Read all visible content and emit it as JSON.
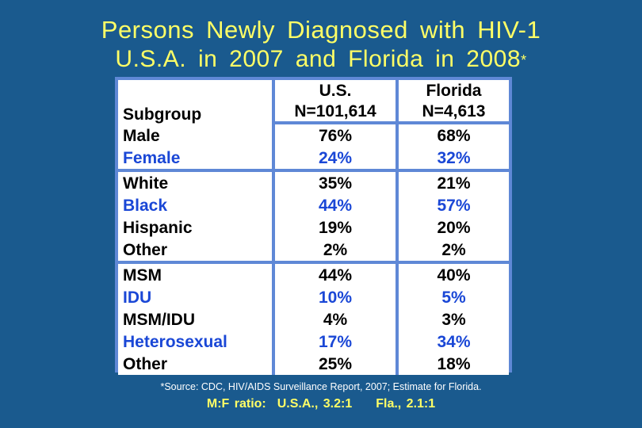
{
  "title": {
    "line1": "Persons  Newly  Diagnosed  with  HIV-1",
    "line2": "U.S.A.  in  2007  and  Florida  in  2008",
    "asterisk": "*"
  },
  "table": {
    "header": {
      "subgroup": "Subgroup",
      "us_label": "U.S.",
      "us_n": "N=101,614",
      "fl_label": "Florida",
      "fl_n": "N=4,613"
    },
    "rows": [
      {
        "subgroup": "Male",
        "us": "76%",
        "fl": "68%"
      },
      {
        "subgroup": "Female",
        "us": "24%",
        "fl": "32%"
      },
      {
        "subgroup": "White",
        "us": "35%",
        "fl": "21%"
      },
      {
        "subgroup": "Black",
        "us": "44%",
        "fl": "57%"
      },
      {
        "subgroup": "Hispanic",
        "us": "19%",
        "fl": "20%"
      },
      {
        "subgroup": "Other",
        "us": "2%",
        "fl": "2%"
      },
      {
        "subgroup": "MSM",
        "us": "44%",
        "fl": "40%"
      },
      {
        "subgroup": "IDU",
        "us": "10%",
        "fl": "5%"
      },
      {
        "subgroup": "MSM/IDU",
        "us": "4%",
        "fl": "3%"
      },
      {
        "subgroup": "Heterosexual",
        "us": "17%",
        "fl": "34%"
      },
      {
        "subgroup": "Other",
        "us": "25%",
        "fl": "18%"
      }
    ]
  },
  "footnote": {
    "source": "*Source: CDC, HIV/AIDS Surveillance Report, 2007; Estimate for Florida.",
    "ratio_label": "M:F ratio:",
    "ratio_us": "U.S.A., 3.2:1",
    "ratio_fl": "Fla., 2.1:1"
  },
  "colors": {
    "background": "#1a5a8e",
    "title": "#ffff66",
    "table_border": "#5f88d6",
    "highlight_text": "#1a47d6"
  }
}
